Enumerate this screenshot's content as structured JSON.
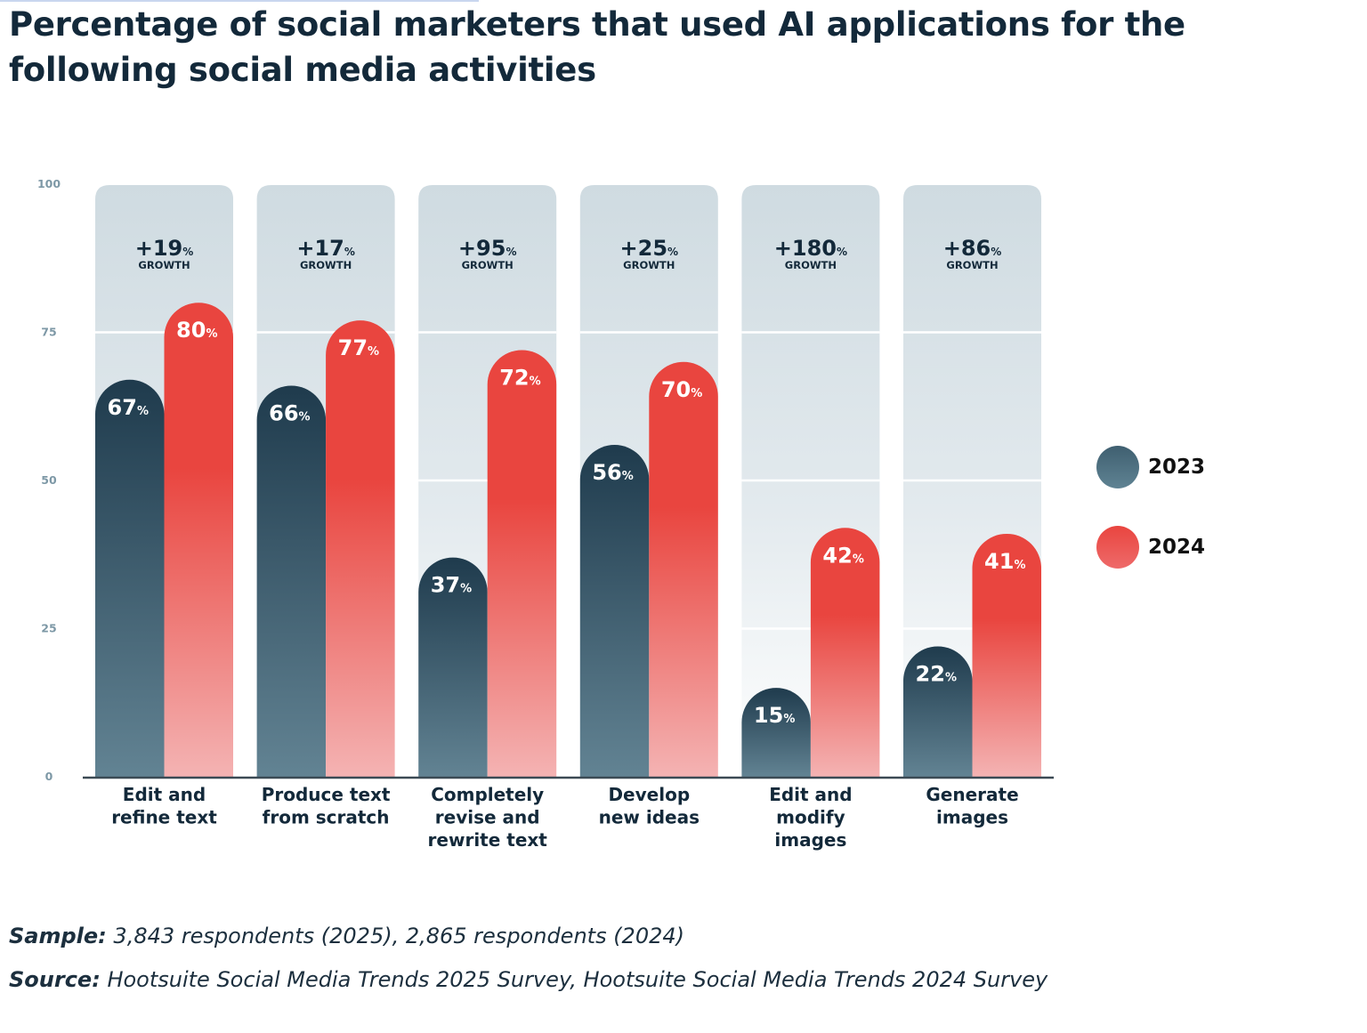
{
  "title": "Percentage of social marketers that used AI applications for the following social media activities",
  "legend": [
    {
      "label": "2023",
      "color": "#3f5f70"
    },
    {
      "label": "2024",
      "color": "#e9453f"
    }
  ],
  "footnotes": {
    "sample_label": "Sample:",
    "sample_text": "3,843 respondents (2025), 2,865 respondents (2024)",
    "source_label": "Source:",
    "source_text": "Hootsuite Social Media Trends 2025 Survey, Hootsuite Social Media Trends 2024 Survey"
  },
  "colors": {
    "series_2023_top": "#1f3b4d",
    "series_2023_bottom": "#628393",
    "series_2024_top": "#e9453f",
    "series_2024_bottom": "#f4b3b3",
    "column_bg_top": "#cfdbe1",
    "column_bg_bottom": "#ffffff",
    "text_dark": "#13293a",
    "axis_tick": "#7d98a6"
  },
  "chart_data": {
    "type": "bar",
    "title": "Percentage of social marketers that used AI applications for the following social media activities",
    "xlabel": "",
    "ylabel": "",
    "ylim": [
      0,
      100
    ],
    "yticks": [
      0,
      25,
      50,
      75,
      100
    ],
    "grid": true,
    "legend_position": "right",
    "value_suffix": "%",
    "growth_word": "GROWTH",
    "categories": [
      [
        "Edit and",
        "refine text"
      ],
      [
        "Produce text",
        "from scratch"
      ],
      [
        "Completely",
        "revise and",
        "rewrite text"
      ],
      [
        "Develop",
        "new ideas"
      ],
      [
        "Edit and",
        "modify",
        "images"
      ],
      [
        "Generate",
        "images"
      ]
    ],
    "series": [
      {
        "name": "2023",
        "values": [
          67,
          66,
          37,
          56,
          15,
          22
        ]
      },
      {
        "name": "2024",
        "values": [
          80,
          77,
          72,
          70,
          42,
          41
        ]
      }
    ],
    "growth": [
      "+19",
      "+17",
      "+95",
      "+25",
      "+180",
      "+86"
    ]
  }
}
